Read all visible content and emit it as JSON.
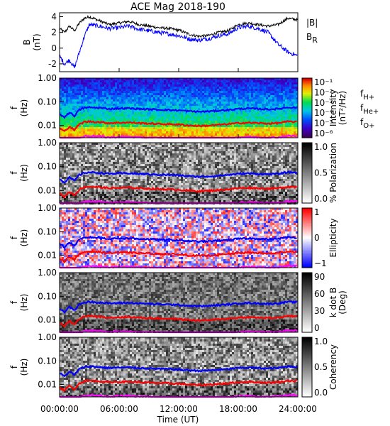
{
  "title": "ACE Mag 2018-190",
  "xlabel": "Time (UT)",
  "xticks": [
    "00:00:00",
    "06:00:00",
    "12:00:00",
    "18:00:00",
    "24:00:00"
  ],
  "colors": {
    "B": "#000000",
    "BR": "#0000ff",
    "fH": "#0000ff",
    "fHe": "#ff0000",
    "fO": "#ff00ff"
  },
  "chart_data": [
    {
      "type": "line",
      "ylabel": "B",
      "yunit": "(nT)",
      "ylim": [
        -3,
        4.5
      ],
      "yticks": [
        "4",
        "2",
        "0",
        "-2"
      ],
      "xlim": [
        0,
        24
      ],
      "legend": {
        "B": "|B|",
        "BR": "B",
        "BR_sub": "R"
      },
      "series": [
        {
          "key": "B",
          "x": [
            0,
            0.5,
            1,
            1.5,
            2,
            2.5,
            3,
            4,
            5,
            6,
            7,
            8,
            9,
            10,
            11,
            12,
            13,
            14,
            15,
            16,
            17,
            18,
            19,
            20,
            21,
            22,
            23,
            24
          ],
          "values": [
            2.5,
            2.0,
            2.8,
            2.2,
            3.2,
            3.8,
            4.0,
            3.5,
            3.0,
            3.2,
            3.4,
            3.0,
            2.8,
            2.6,
            2.5,
            2.3,
            1.8,
            1.5,
            1.6,
            2.0,
            2.2,
            3.0,
            3.2,
            3.0,
            2.8,
            3.0,
            3.8,
            3.6
          ]
        },
        {
          "key": "BR",
          "x": [
            0,
            0.5,
            1,
            1.5,
            2,
            2.5,
            3,
            4,
            5,
            6,
            7,
            8,
            9,
            10,
            11,
            12,
            13,
            14,
            15,
            16,
            17,
            18,
            19,
            20,
            21,
            22,
            23,
            24
          ],
          "values": [
            -1.0,
            -2.0,
            -1.5,
            -2.5,
            -0.5,
            1.5,
            3.0,
            2.8,
            2.5,
            2.6,
            2.8,
            2.4,
            2.2,
            2.0,
            1.8,
            1.6,
            1.2,
            1.0,
            1.2,
            1.6,
            1.8,
            2.6,
            2.8,
            2.5,
            2.0,
            0.5,
            -0.5,
            -1.0
          ]
        }
      ]
    },
    {
      "type": "heatmap",
      "ylabel": "f",
      "yunit": "(Hz)",
      "ylim": [
        0.003,
        1.0
      ],
      "yticks": [
        "1.00",
        "0.10",
        "0.01"
      ],
      "colorbar": {
        "label": "Intensity",
        "unit": "(nT²/Hz)",
        "scheme": "rainbow",
        "ticks": [
          "10⁻¹",
          "10⁻²",
          "10⁻³",
          "10⁻⁴",
          "10⁻⁵",
          "10⁻⁶"
        ]
      },
      "legend": {
        "H": "f",
        "H_sub": "H+",
        "He": "f",
        "He_sub": "He+",
        "O": "f",
        "O_sub": "O+"
      },
      "texture": "spectrum"
    },
    {
      "type": "heatmap",
      "ylabel": "f",
      "yunit": "(Hz)",
      "ylim": [
        0.003,
        1.0
      ],
      "yticks": [
        "1.00",
        "0.10",
        "0.01"
      ],
      "colorbar": {
        "label": "% Polarization",
        "scheme": "gray",
        "ticks": [
          "1.0",
          "0.5",
          "0.0"
        ]
      },
      "texture": "gray"
    },
    {
      "type": "heatmap",
      "ylabel": "f",
      "yunit": "(Hz)",
      "ylim": [
        0.003,
        1.0
      ],
      "yticks": [
        "1.00",
        "0.10",
        "0.01"
      ],
      "colorbar": {
        "label": "Ellipticity",
        "scheme": "bwr",
        "ticks": [
          "1",
          "0",
          "−1"
        ]
      },
      "texture": "bwr"
    },
    {
      "type": "heatmap",
      "ylabel": "f",
      "yunit": "(Hz)",
      "ylim": [
        0.003,
        1.0
      ],
      "yticks": [
        "1.00",
        "0.10",
        "0.01"
      ],
      "colorbar": {
        "label": "k dot B",
        "unit": "(Deg)",
        "scheme": "gray",
        "ticks": [
          "90",
          "60",
          "30",
          "0"
        ]
      },
      "texture": "gray-dark"
    },
    {
      "type": "heatmap",
      "ylabel": "f",
      "yunit": "(Hz)",
      "ylim": [
        0.003,
        1.0
      ],
      "yticks": [
        "1.00",
        "0.10",
        "0.01"
      ],
      "colorbar": {
        "label": "Coherency",
        "scheme": "gray",
        "ticks": [
          "1.0",
          "0.5",
          "0.0"
        ]
      },
      "texture": "gray"
    }
  ],
  "gyro_lines": {
    "x": [
      0,
      0.5,
      1,
      1.5,
      2,
      2.5,
      3,
      4,
      5,
      6,
      7,
      8,
      9,
      10,
      11,
      12,
      13,
      14,
      15,
      16,
      17,
      18,
      19,
      20,
      21,
      22,
      23,
      24
    ],
    "fH": [
      0.03,
      0.022,
      0.035,
      0.025,
      0.045,
      0.055,
      0.058,
      0.055,
      0.05,
      0.052,
      0.053,
      0.05,
      0.048,
      0.046,
      0.045,
      0.043,
      0.04,
      0.038,
      0.039,
      0.042,
      0.045,
      0.05,
      0.052,
      0.05,
      0.048,
      0.05,
      0.058,
      0.056
    ],
    "fHe": [
      0.0075,
      0.0055,
      0.0088,
      0.0063,
      0.011,
      0.014,
      0.0145,
      0.0138,
      0.0125,
      0.013,
      0.0133,
      0.0125,
      0.012,
      0.0115,
      0.0113,
      0.0108,
      0.01,
      0.0095,
      0.0098,
      0.0105,
      0.0113,
      0.0125,
      0.013,
      0.0125,
      0.012,
      0.0125,
      0.0145,
      0.014
    ],
    "fO": [
      0.0019,
      0.0014,
      0.0022,
      0.0016,
      0.0028,
      0.0034,
      0.0036,
      0.0034,
      0.0031,
      0.0033,
      0.0033,
      0.0031,
      0.003,
      0.0029,
      0.0028,
      0.0027,
      0.0025,
      0.0024,
      0.0024,
      0.0026,
      0.0028,
      0.0031,
      0.0033,
      0.0031,
      0.003,
      0.0031,
      0.0036,
      0.0035
    ]
  }
}
